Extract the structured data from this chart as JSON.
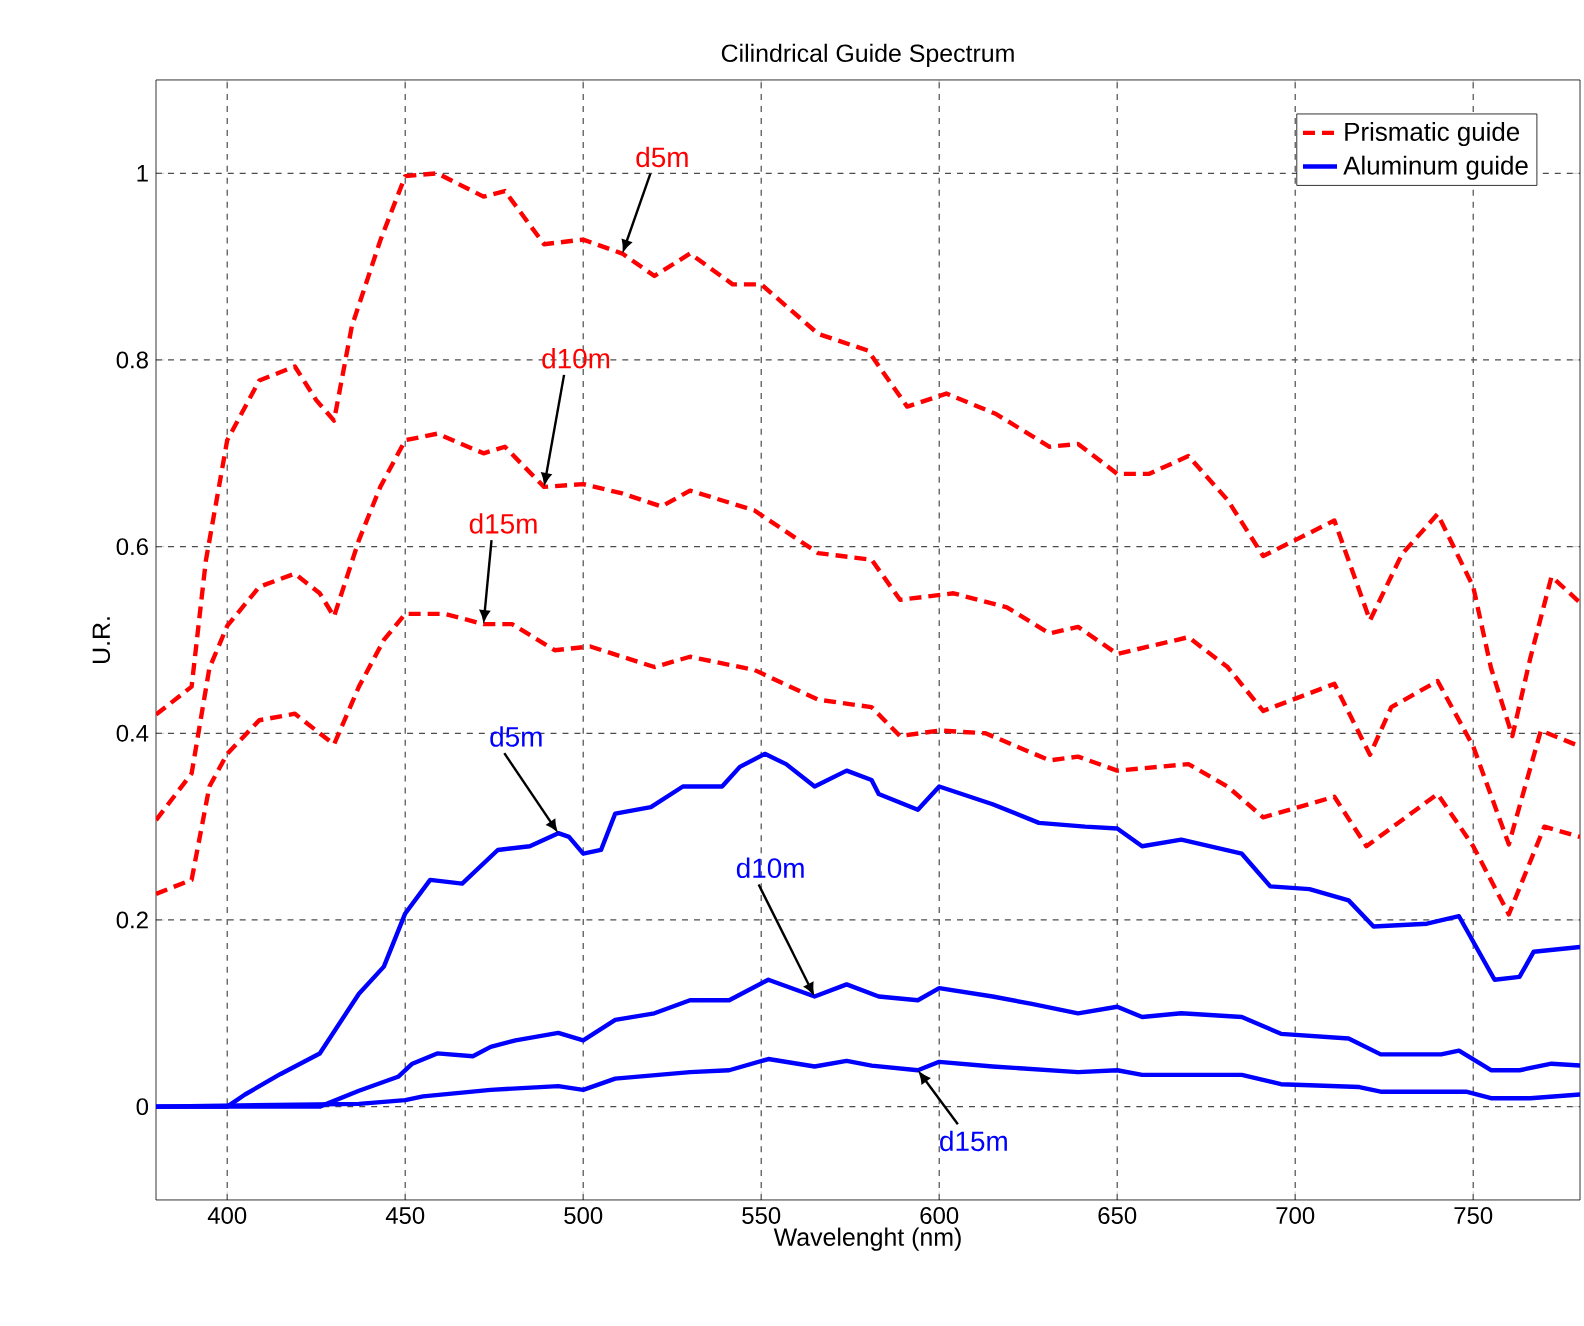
{
  "chart_data": {
    "type": "line",
    "title": "Cilindrical Guide Spectrum",
    "xlabel": "Wavelenght (nm)",
    "ylabel": "U.R.",
    "xlim": [
      380,
      780
    ],
    "ylim": [
      -0.1,
      1.1
    ],
    "xticks": [
      400,
      450,
      500,
      550,
      600,
      650,
      700,
      750
    ],
    "yticks": [
      0,
      0.2,
      0.4,
      0.6,
      0.8,
      1
    ],
    "grid": true,
    "legend": "top right",
    "series": [
      {
        "name": "Prismatic guide",
        "color": "#ff0000",
        "line_style": "dashed",
        "x": [
          380,
          390,
          394,
          400,
          409,
          419,
          425,
          430,
          435,
          443,
          450,
          459,
          472,
          478,
          489,
          500,
          511,
          520,
          530,
          542,
          550,
          566,
          580,
          591,
          602,
          616,
          631,
          639,
          650,
          659,
          670,
          681,
          691,
          700,
          711,
          721,
          730,
          740,
          750,
          755,
          761,
          766,
          772,
          780
        ],
        "values": [
          0.42,
          0.45,
          0.585,
          0.714,
          0.778,
          0.793,
          0.757,
          0.735,
          0.836,
          0.928,
          0.997,
          1.0,
          0.975,
          0.981,
          0.924,
          0.929,
          0.914,
          0.89,
          0.914,
          0.881,
          0.881,
          0.828,
          0.81,
          0.75,
          0.764,
          0.742,
          0.707,
          0.71,
          0.678,
          0.678,
          0.697,
          0.65,
          0.59,
          0.607,
          0.628,
          0.521,
          0.592,
          0.635,
          0.557,
          0.47,
          0.397,
          0.48,
          0.568,
          0.54
        ]
      },
      {
        "color": "#ff0000",
        "line_style": "dashed",
        "x": [
          380,
          390,
          395,
          400,
          409,
          419,
          426,
          430,
          437,
          443,
          450,
          459,
          472,
          478,
          489,
          500,
          511,
          522,
          530,
          548,
          566,
          581,
          589,
          604,
          619,
          631,
          639,
          650,
          670,
          681,
          691,
          711,
          721,
          727,
          740,
          750,
          760,
          769,
          780
        ],
        "values": [
          0.307,
          0.357,
          0.47,
          0.515,
          0.557,
          0.571,
          0.55,
          0.525,
          0.607,
          0.664,
          0.714,
          0.721,
          0.7,
          0.707,
          0.664,
          0.667,
          0.657,
          0.643,
          0.66,
          0.639,
          0.593,
          0.586,
          0.543,
          0.55,
          0.535,
          0.507,
          0.514,
          0.485,
          0.503,
          0.471,
          0.424,
          0.453,
          0.377,
          0.428,
          0.456,
          0.386,
          0.281,
          0.403,
          0.386
        ]
      },
      {
        "color": "#ff0000",
        "line_style": "dashed",
        "x": [
          380,
          390,
          395,
          400,
          409,
          419,
          430,
          437,
          444,
          450,
          461,
          472,
          480,
          492,
          502,
          520,
          530,
          548,
          566,
          581,
          589,
          600,
          613,
          631,
          639,
          650,
          670,
          681,
          691,
          711,
          720,
          740,
          750,
          760,
          770,
          780
        ],
        "values": [
          0.228,
          0.243,
          0.343,
          0.378,
          0.414,
          0.421,
          0.388,
          0.45,
          0.5,
          0.528,
          0.528,
          0.517,
          0.517,
          0.489,
          0.493,
          0.471,
          0.482,
          0.468,
          0.436,
          0.428,
          0.397,
          0.403,
          0.4,
          0.371,
          0.375,
          0.36,
          0.367,
          0.343,
          0.31,
          0.332,
          0.279,
          0.335,
          0.279,
          0.206,
          0.3,
          0.289
        ]
      },
      {
        "name": "Aluminum guide",
        "color": "#0000ff",
        "line_style": "solid",
        "x": [
          380,
          400,
          405,
          415,
          426,
          437,
          444,
          450,
          457,
          466,
          476,
          485,
          493,
          496,
          500,
          505,
          509,
          519,
          528,
          539,
          544,
          551,
          557,
          565,
          574,
          581,
          583,
          594,
          600,
          615,
          628,
          641,
          650,
          657,
          668,
          685,
          693,
          704,
          715,
          722,
          737,
          746,
          756,
          763,
          767,
          780
        ],
        "values": [
          0,
          0,
          0.013,
          0.035,
          0.057,
          0.121,
          0.15,
          0.207,
          0.243,
          0.239,
          0.275,
          0.279,
          0.293,
          0.289,
          0.271,
          0.275,
          0.314,
          0.321,
          0.343,
          0.343,
          0.364,
          0.378,
          0.367,
          0.343,
          0.36,
          0.35,
          0.335,
          0.318,
          0.343,
          0.324,
          0.304,
          0.3,
          0.298,
          0.279,
          0.286,
          0.271,
          0.236,
          0.233,
          0.221,
          0.193,
          0.196,
          0.204,
          0.136,
          0.139,
          0.166,
          0.171
        ]
      },
      {
        "color": "#0000ff",
        "line_style": "solid",
        "x": [
          380,
          426,
          437,
          448,
          452,
          459,
          469,
          474,
          481,
          493,
          500,
          509,
          520,
          530,
          541,
          552,
          565,
          574,
          583,
          594,
          600,
          615,
          626,
          639,
          650,
          657,
          668,
          685,
          696,
          715,
          724,
          741,
          746,
          755,
          763,
          772,
          780
        ],
        "values": [
          0,
          0,
          0.017,
          0.032,
          0.046,
          0.057,
          0.054,
          0.064,
          0.071,
          0.079,
          0.071,
          0.093,
          0.1,
          0.114,
          0.114,
          0.136,
          0.118,
          0.131,
          0.118,
          0.114,
          0.127,
          0.118,
          0.11,
          0.1,
          0.107,
          0.096,
          0.1,
          0.096,
          0.078,
          0.073,
          0.056,
          0.056,
          0.06,
          0.039,
          0.039,
          0.046,
          0.044
        ]
      },
      {
        "color": "#0000ff",
        "line_style": "solid",
        "x": [
          380,
          437,
          450,
          455,
          474,
          493,
          500,
          509,
          530,
          541,
          552,
          565,
          574,
          581,
          594,
          600,
          615,
          639,
          650,
          657,
          685,
          696,
          718,
          724,
          748,
          755,
          766,
          780
        ],
        "values": [
          0,
          0.003,
          0.007,
          0.011,
          0.018,
          0.022,
          0.018,
          0.03,
          0.037,
          0.039,
          0.051,
          0.043,
          0.049,
          0.044,
          0.039,
          0.048,
          0.043,
          0.037,
          0.039,
          0.034,
          0.034,
          0.024,
          0.021,
          0.016,
          0.016,
          0.009,
          0.009,
          0.013
        ]
      }
    ],
    "annotations": [
      {
        "text": "d5m",
        "x": 511,
        "y": 0.914
      },
      {
        "text": "d10m",
        "x": 489,
        "y": 0.664
      },
      {
        "text": "d15m",
        "x": 472,
        "y": 0.517
      },
      {
        "text": "d5m",
        "x": 493,
        "y": 0.293
      },
      {
        "text": "d10m",
        "x": 565,
        "y": 0.118
      },
      {
        "text": "d15m",
        "x": 594,
        "y": 0.039
      }
    ]
  }
}
